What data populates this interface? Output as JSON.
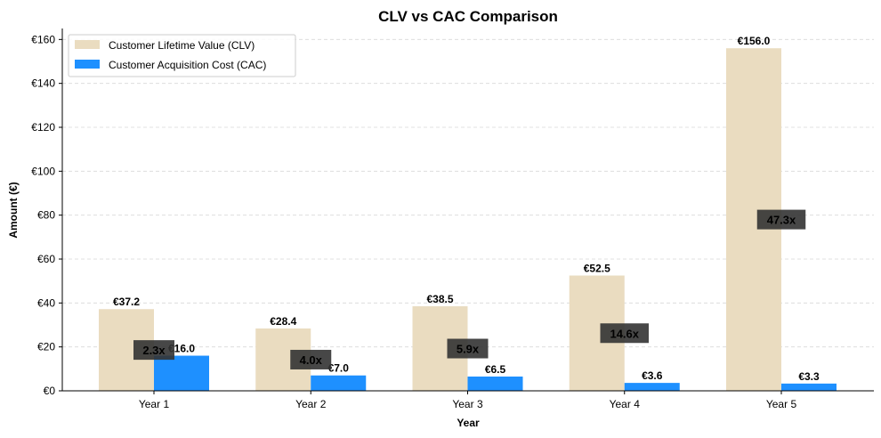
{
  "chart_data": {
    "type": "bar",
    "title": "CLV vs CAC Comparison",
    "xlabel": "Year",
    "ylabel": "Amount (€)",
    "categories": [
      "Year 1",
      "Year 2",
      "Year 3",
      "Year 4",
      "Year 5"
    ],
    "ylim": [
      0,
      165
    ],
    "yticks": [
      0,
      20,
      40,
      60,
      80,
      100,
      120,
      140,
      160
    ],
    "ytick_labels": [
      "€0",
      "€20",
      "€40",
      "€60",
      "€80",
      "€100",
      "€120",
      "€140",
      "€160"
    ],
    "grid": "y",
    "legend_position": "top-left",
    "series": [
      {
        "name": "Customer Lifetime Value (CLV)",
        "color": "#eadcc0",
        "values": [
          37.2,
          28.4,
          38.5,
          52.5,
          156.0
        ],
        "labels": [
          "€37.2",
          "€28.4",
          "€38.5",
          "€52.5",
          "€156.0"
        ]
      },
      {
        "name": "Customer Acquisition Cost (CAC)",
        "color": "#1e90ff",
        "values": [
          16.0,
          7.0,
          6.5,
          3.6,
          3.3
        ],
        "labels": [
          "€16.0",
          "€7.0",
          "€6.5",
          "€3.6",
          "€3.3"
        ]
      }
    ],
    "ratio_labels": [
      "2.3x",
      "4.0x",
      "5.9x",
      "14.6x",
      "47.3x"
    ],
    "ratio_box_color": "#333333"
  }
}
